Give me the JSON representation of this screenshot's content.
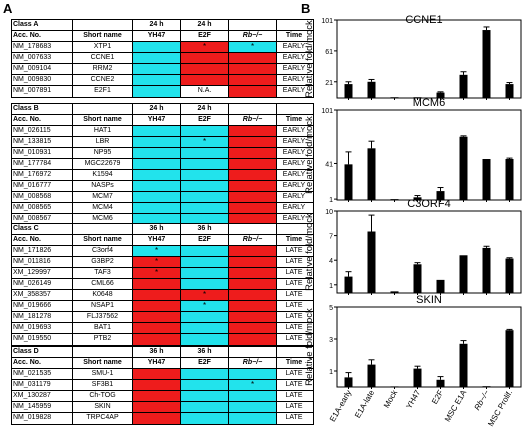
{
  "panels": {
    "a": "A",
    "b": "B"
  },
  "tables": [
    {
      "class_label": "Class A",
      "header_top": [
        "",
        "",
        "24 h",
        "24 h",
        "",
        ""
      ],
      "header": [
        "Acc. No.",
        "Short name",
        "YH47",
        "E2F",
        "Rb−/−",
        "Time"
      ],
      "rows": [
        {
          "acc": "NM_178683",
          "name": "XTP1",
          "c1": "cyan",
          "c2": "red",
          "c2star": "*",
          "c3": "cyan",
          "c3star": "*",
          "time": "EARLY"
        },
        {
          "acc": "NM_007633",
          "name": "CCNE1",
          "c1": "cyan",
          "c2": "red",
          "c3": "red",
          "time": "EARLY"
        },
        {
          "acc": "NM_009104",
          "name": "RRM2",
          "c1": "cyan",
          "c2": "red",
          "c3": "red",
          "time": "EARLY"
        },
        {
          "acc": "NM_009830",
          "name": "CCNE2",
          "c1": "cyan",
          "c2": "red",
          "c3": "red",
          "time": "EARLY"
        },
        {
          "acc": "NM_007891",
          "name": "E2F1",
          "c1": "cyan",
          "c2": "white",
          "c2text": "N.A.",
          "c3": "red",
          "time": "EARLY"
        }
      ]
    },
    {
      "class_label": "Class B",
      "header_top": [
        "",
        "",
        "24 h",
        "24 h",
        "",
        ""
      ],
      "header": [
        "Acc. No.",
        "Short name",
        "YH47",
        "E2F",
        "Rb−/−",
        "Time"
      ],
      "rows": [
        {
          "acc": "NM_026115",
          "name": "HAT1",
          "c1": "cyan",
          "c2": "cyan",
          "c3": "red",
          "time": "EARLY"
        },
        {
          "acc": "NM_133815",
          "name": "LBR",
          "c1": "cyan",
          "c2": "cyan",
          "c2star": "*",
          "c3": "red",
          "time": "EARLY"
        },
        {
          "acc": "NM_010931",
          "name": "NP95",
          "c1": "cyan",
          "c2": "cyan",
          "c3": "red",
          "time": "EARLY"
        },
        {
          "acc": "NM_177784",
          "name": "MGC22679",
          "c1": "cyan",
          "c2": "cyan",
          "c3": "red",
          "time": "EARLY"
        },
        {
          "acc": "NM_176972",
          "name": "K1594",
          "c1": "cyan",
          "c2": "cyan",
          "c3": "red",
          "time": "EARLY"
        },
        {
          "acc": "NM_016777",
          "name": "NASPs",
          "c1": "cyan",
          "c2": "cyan",
          "c3": "red",
          "time": "EARLY"
        },
        {
          "acc": "NM_008568",
          "name": "MCM7",
          "c1": "cyan",
          "c2": "cyan",
          "c3": "red",
          "time": "EARLY"
        },
        {
          "acc": "NM_008565",
          "name": "MCM4",
          "c1": "cyan",
          "c2": "cyan",
          "c3": "red",
          "time": "EARLY"
        },
        {
          "acc": "NM_008567",
          "name": "MCM6",
          "c1": "cyan",
          "c2": "cyan",
          "c3": "red",
          "time": "EARLY"
        }
      ]
    },
    {
      "class_label": "Class C",
      "header_top": [
        "",
        "",
        "36 h",
        "36 h",
        "",
        ""
      ],
      "header": [
        "Acc. No.",
        "Short name",
        "YH47",
        "E2F",
        "Rb−/−",
        "Time"
      ],
      "rows": [
        {
          "acc": "NM_171826",
          "name": "C3orf4",
          "c1": "cyan",
          "c1star": "*",
          "c2": "cyan",
          "c3": "red",
          "time": "LATE"
        },
        {
          "acc": "NM_011816",
          "name": "G3BP2",
          "c1": "red",
          "c1star": "*",
          "c2": "cyan",
          "c3": "red",
          "time": "LATE"
        },
        {
          "acc": "XM_129997",
          "name": "TAF3",
          "c1": "red",
          "c1star": "*",
          "c2": "cyan",
          "c3": "red",
          "time": "LATE"
        },
        {
          "acc": "NM_026149",
          "name": "CML66",
          "c1": "red",
          "c2": "cyan",
          "c3": "red",
          "time": "LATE"
        },
        {
          "acc": "XM_358357",
          "name": "K0648",
          "c1": "red",
          "c2": "red",
          "c2star": "*",
          "c3": "red",
          "time": "LATE"
        },
        {
          "acc": "NM_019666",
          "name": "NSAP1",
          "c1": "red",
          "c2": "cyan",
          "c2star": "*",
          "c3": "red",
          "time": "LATE"
        },
        {
          "acc": "NM_181278",
          "name": "FLJ37562",
          "c1": "red",
          "c2": "cyan",
          "c3": "red",
          "time": "LATE"
        },
        {
          "acc": "NM_019693",
          "name": "BAT1",
          "c1": "red",
          "c2": "cyan",
          "c3": "red",
          "time": "LATE"
        },
        {
          "acc": "NM_019550",
          "name": "PTB2",
          "c1": "red",
          "c2": "cyan",
          "c3": "red",
          "time": "LATE"
        }
      ]
    },
    {
      "class_label": "Class D",
      "header_top": [
        "",
        "",
        "36 h",
        "36 h",
        "",
        ""
      ],
      "header": [
        "Acc. No.",
        "Short name",
        "YH47",
        "E2F",
        "Rb−/−",
        "Time"
      ],
      "rows": [
        {
          "acc": "NM_021535",
          "name": "SMU-1",
          "c1": "red",
          "c2": "cyan",
          "c3": "cyan",
          "time": "LATE"
        },
        {
          "acc": "NM_031179",
          "name": "SF3B1",
          "c1": "red",
          "c2": "cyan",
          "c3": "cyan",
          "c3star": "*",
          "time": "LATE"
        },
        {
          "acc": "XM_130287",
          "name": "Ch-TOG",
          "c1": "red",
          "c2": "cyan",
          "c3": "cyan",
          "time": "LATE"
        },
        {
          "acc": "NM_145959",
          "name": "SKIN",
          "c1": "red",
          "c2": "cyan",
          "c3": "cyan",
          "time": "LATE"
        },
        {
          "acc": "NM_019828",
          "name": "TRPC4AP",
          "c1": "red",
          "c2": "cyan",
          "c3": "cyan",
          "time": "LATE"
        }
      ]
    }
  ],
  "colors": {
    "red": "#ee1c1c",
    "cyan": "#22e3ec"
  },
  "chart_data": [
    {
      "type": "bar",
      "title": "CCNE1",
      "ylabel": "Relative fold/mock",
      "ylim": [
        0,
        101
      ],
      "yticks": [
        21,
        61,
        101
      ],
      "categories": [
        "E1A-early",
        "E1A-late",
        "Mock",
        "YH47",
        "E2F",
        "MSC E1A",
        "Rb−/−",
        "MSC Prolif."
      ],
      "values": [
        18,
        21,
        1,
        1,
        7,
        30,
        88,
        18
      ],
      "errors": [
        3,
        3,
        0,
        0,
        1,
        4,
        4,
        2
      ]
    },
    {
      "type": "bar",
      "title": "MCM6",
      "ylabel": "Relative fold/mock",
      "ylim": [
        0,
        101
      ],
      "yticks": [
        1,
        41,
        101
      ],
      "categories": [
        "E1A-early",
        "E1A-late",
        "Mock",
        "YH47",
        "E2F",
        "MSC E1A",
        "Rb−/−",
        "MSC Prolif."
      ],
      "values": [
        40,
        58,
        1,
        3,
        10,
        71,
        46,
        46
      ],
      "errors": [
        14,
        8,
        0,
        2,
        4,
        1,
        0,
        1
      ]
    },
    {
      "type": "bar",
      "title": "C3ORF4",
      "ylabel": "Relative fold/mock",
      "ylim": [
        0,
        10
      ],
      "yticks": [
        1,
        4,
        7,
        10
      ],
      "categories": [
        "E1A-early",
        "E1A-late",
        "Mock",
        "YH47",
        "E2F",
        "MSC E1A",
        "Rb−/−",
        "MSC Prolif."
      ],
      "values": [
        2.0,
        7.5,
        0.2,
        3.5,
        1.6,
        4.6,
        5.5,
        4.2
      ],
      "errors": [
        0.6,
        2.0,
        0,
        0.2,
        0,
        0,
        0.2,
        0.1
      ]
    },
    {
      "type": "bar",
      "title": "SKIN",
      "ylabel": "Relative fold/mock",
      "ylim": [
        0,
        5
      ],
      "yticks": [
        1,
        3,
        5
      ],
      "categories": [
        "E1A-early",
        "E1A-late",
        "Mock",
        "YH47",
        "E2F",
        "MSC E1A",
        "Rb−/−",
        "MSC Prolif."
      ],
      "values": [
        0.6,
        1.4,
        0.0,
        1.15,
        0.45,
        2.7,
        0.05,
        3.55
      ],
      "errors": [
        0.3,
        0.3,
        0,
        0.15,
        0.2,
        0.2,
        0,
        0.05
      ]
    }
  ]
}
